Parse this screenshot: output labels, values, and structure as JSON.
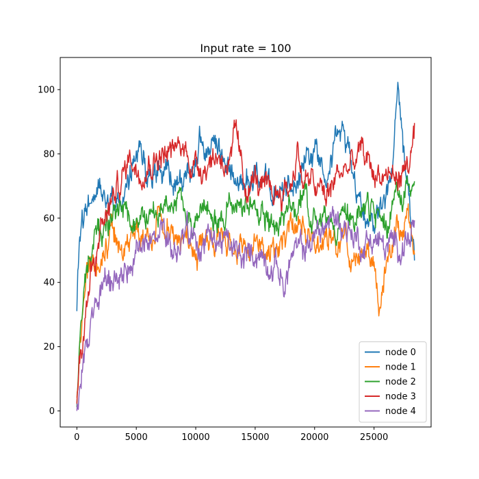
{
  "chart_data": {
    "type": "line",
    "title": "Input rate = 100",
    "xlabel": "",
    "ylabel": "",
    "xlim": [
      -1400,
      29800
    ],
    "ylim": [
      -5,
      110
    ],
    "xticks": [
      0,
      5000,
      10000,
      15000,
      20000,
      25000
    ],
    "xtick_labels": [
      "0",
      "5000",
      "10000",
      "15000",
      "20000",
      "25000"
    ],
    "yticks": [
      0,
      20,
      40,
      60,
      80,
      100
    ],
    "ytick_labels": [
      "0",
      "20",
      "40",
      "60",
      "80",
      "100"
    ],
    "grid": false,
    "legend_position": "lower-right",
    "series": [
      {
        "name": "node 0",
        "color": "#1f77b4",
        "x": [
          0,
          200,
          500,
          800,
          1200,
          2000,
          3000,
          4000,
          5000,
          5600,
          6000,
          7000,
          8000,
          9000,
          10000,
          10300,
          11000,
          12000,
          13000,
          14000,
          15000,
          16000,
          17000,
          18000,
          19000,
          20000,
          21000,
          22000,
          23000,
          24000,
          25000,
          26000,
          26500,
          27000,
          27500,
          28000,
          28400
        ],
        "y": [
          30,
          52,
          58,
          62,
          66,
          70,
          68,
          66,
          76,
          84,
          72,
          74,
          72,
          70,
          76,
          86,
          80,
          76,
          74,
          70,
          74,
          68,
          66,
          70,
          78,
          80,
          78,
          86,
          80,
          62,
          60,
          66,
          72,
          100,
          80,
          64,
          46
        ]
      },
      {
        "name": "node 1",
        "color": "#ff7f0e",
        "x": [
          0,
          200,
          500,
          800,
          1200,
          2000,
          3000,
          4000,
          5000,
          6000,
          7000,
          8000,
          9000,
          10000,
          11000,
          12000,
          13000,
          14000,
          15000,
          16000,
          17000,
          18000,
          19000,
          20000,
          21000,
          22000,
          23000,
          24000,
          25000,
          25500,
          26000,
          27000,
          28000,
          28400
        ],
        "y": [
          5,
          20,
          30,
          38,
          44,
          48,
          54,
          50,
          56,
          52,
          60,
          54,
          56,
          48,
          54,
          50,
          52,
          50,
          54,
          52,
          50,
          54,
          56,
          52,
          56,
          54,
          50,
          52,
          44,
          32,
          44,
          56,
          60,
          52
        ]
      },
      {
        "name": "node 2",
        "color": "#2ca02c",
        "x": [
          0,
          200,
          500,
          800,
          1200,
          2000,
          3000,
          4000,
          5000,
          6000,
          7000,
          8000,
          9000,
          10000,
          11000,
          12000,
          13000,
          14000,
          15000,
          16000,
          17000,
          18000,
          19000,
          20000,
          21000,
          22000,
          23000,
          24000,
          25000,
          26000,
          27000,
          27800,
          28400
        ],
        "y": [
          2,
          24,
          34,
          44,
          50,
          56,
          62,
          60,
          58,
          62,
          60,
          66,
          64,
          58,
          62,
          60,
          66,
          64,
          60,
          62,
          58,
          62,
          64,
          62,
          58,
          60,
          62,
          60,
          62,
          58,
          64,
          72,
          66
        ]
      },
      {
        "name": "node 3",
        "color": "#d62728",
        "x": [
          0,
          200,
          500,
          800,
          1200,
          2000,
          3000,
          4000,
          4500,
          5000,
          6000,
          7000,
          8000,
          9000,
          10000,
          11000,
          12000,
          13000,
          13400,
          14000,
          15000,
          16000,
          17000,
          18000,
          18600,
          19000,
          20000,
          21000,
          22000,
          23000,
          24000,
          25000,
          26000,
          27000,
          28000,
          28400
        ],
        "y": [
          0,
          12,
          22,
          34,
          44,
          56,
          66,
          74,
          80,
          76,
          78,
          80,
          80,
          82,
          76,
          78,
          80,
          76,
          86,
          70,
          72,
          66,
          68,
          70,
          82,
          72,
          70,
          66,
          74,
          76,
          80,
          74,
          74,
          72,
          78,
          84
        ]
      },
      {
        "name": "node 4",
        "color": "#9467bd",
        "x": [
          0,
          200,
          500,
          800,
          1200,
          2000,
          3000,
          4000,
          5000,
          6000,
          7000,
          8000,
          9000,
          10000,
          11000,
          12000,
          13000,
          14000,
          15000,
          16000,
          17000,
          17500,
          18000,
          19000,
          20000,
          21000,
          22000,
          23000,
          24000,
          25000,
          26000,
          27000,
          28000,
          28400
        ],
        "y": [
          0,
          6,
          14,
          22,
          28,
          36,
          40,
          44,
          48,
          52,
          54,
          50,
          52,
          54,
          50,
          54,
          50,
          46,
          50,
          48,
          44,
          38,
          48,
          50,
          54,
          58,
          60,
          56,
          52,
          54,
          50,
          52,
          54,
          58
        ]
      }
    ]
  }
}
